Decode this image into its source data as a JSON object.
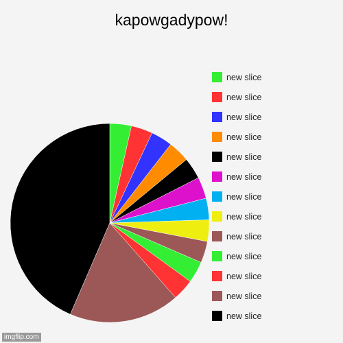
{
  "chart_data": {
    "type": "pie",
    "title": "kapowgadypow!",
    "start_angle_deg": 0,
    "direction": "clockwise",
    "slices": [
      {
        "label": "new slice",
        "color": "#33ee33",
        "value": 3.5
      },
      {
        "label": "new slice",
        "color": "#ff3333",
        "value": 3.5
      },
      {
        "label": "new slice",
        "color": "#3333ff",
        "value": 3.5
      },
      {
        "label": "new slice",
        "color": "#ff8c00",
        "value": 3.5
      },
      {
        "label": "new slice",
        "color": "#000000",
        "value": 3.5
      },
      {
        "label": "new slice",
        "color": "#dd11cc",
        "value": 3.5
      },
      {
        "label": "new slice",
        "color": "#00b0f0",
        "value": 3.5
      },
      {
        "label": "new slice",
        "color": "#eeee11",
        "value": 3.5
      },
      {
        "label": "new slice",
        "color": "#9c5757",
        "value": 3.5
      },
      {
        "label": "new slice",
        "color": "#33ee33",
        "value": 3.5
      },
      {
        "label": "new slice",
        "color": "#ff3333",
        "value": 3.5
      },
      {
        "label": "new slice",
        "color": "#9c5757",
        "value": 18
      },
      {
        "label": "new slice",
        "color": "#000000",
        "value": 43.5
      }
    ]
  },
  "watermark": "imgflip.com"
}
